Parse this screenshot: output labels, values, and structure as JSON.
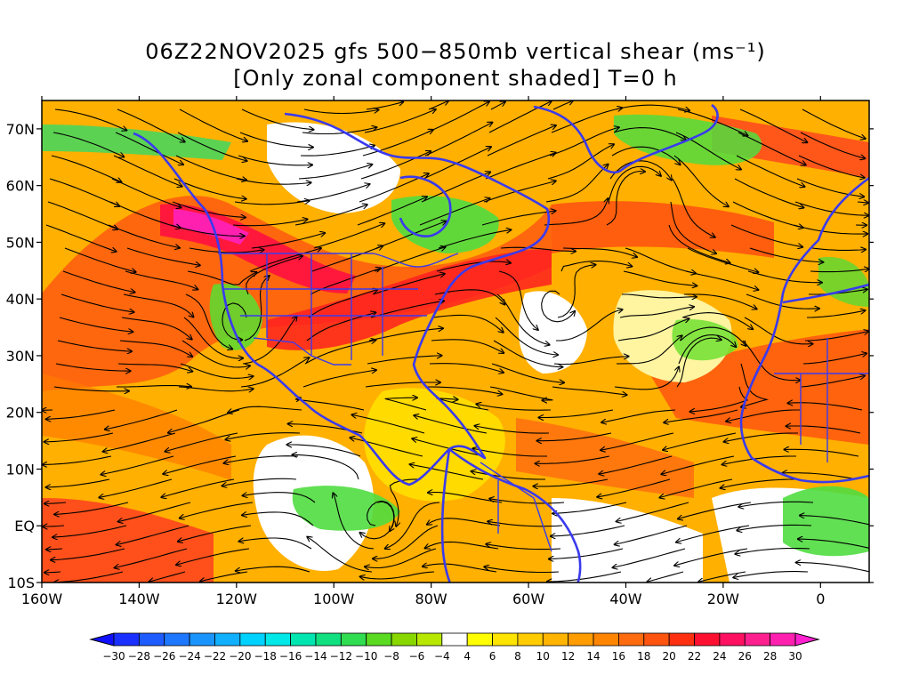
{
  "title": {
    "line1": "06Z22NOV2025 gfs 500−850mb vertical shear (ms⁻¹)",
    "line2": "[Only zonal component shaded] T=0 h"
  },
  "axes": {
    "lon_ticks": [
      {
        "value": -160,
        "label": "160W"
      },
      {
        "value": -140,
        "label": "140W"
      },
      {
        "value": -120,
        "label": "120W"
      },
      {
        "value": -100,
        "label": "100W"
      },
      {
        "value": -80,
        "label": "80W"
      },
      {
        "value": -60,
        "label": "60W"
      },
      {
        "value": -40,
        "label": "40W"
      },
      {
        "value": -20,
        "label": "20W"
      },
      {
        "value": 0,
        "label": "0"
      }
    ],
    "lat_ticks": [
      {
        "value": 70,
        "label": "70N"
      },
      {
        "value": 60,
        "label": "60N"
      },
      {
        "value": 50,
        "label": "50N"
      },
      {
        "value": 40,
        "label": "40N"
      },
      {
        "value": 30,
        "label": "30N"
      },
      {
        "value": 20,
        "label": "20N"
      },
      {
        "value": 10,
        "label": "10N"
      },
      {
        "value": 0,
        "label": "EQ"
      },
      {
        "value": -10,
        "label": "10S"
      }
    ],
    "lon_range": [
      -160,
      10
    ],
    "lat_range": [
      -10,
      75
    ]
  },
  "colorbar": {
    "labels": [
      "−30",
      "−28",
      "−26",
      "−24",
      "−22",
      "−20",
      "−18",
      "−16",
      "−14",
      "−12",
      "−10",
      "−8",
      "−6",
      "−4",
      "4",
      "6",
      "8",
      "10",
      "12",
      "14",
      "16",
      "18",
      "20",
      "22",
      "24",
      "26",
      "28",
      "30"
    ],
    "colors": [
      "#1a30ff",
      "#1e5cff",
      "#1e78ff",
      "#1a94ff",
      "#10b0ff",
      "#00d2ff",
      "#00e8e8",
      "#00e6b0",
      "#10e080",
      "#30dd50",
      "#5ada20",
      "#88d800",
      "#b8e800",
      "#ffffff",
      "#ffff00",
      "#ffe400",
      "#ffcc00",
      "#ffb400",
      "#ff9c00",
      "#ff8400",
      "#ff6c10",
      "#ff5410",
      "#ff3010",
      "#ff1030",
      "#ff1060",
      "#ff2090",
      "#ff20b0"
    ],
    "under_color": "#1010ff",
    "over_color": "#ff20d0"
  },
  "styling": {
    "coast_color": "#3a3aee",
    "streamline_color": "#000000"
  }
}
